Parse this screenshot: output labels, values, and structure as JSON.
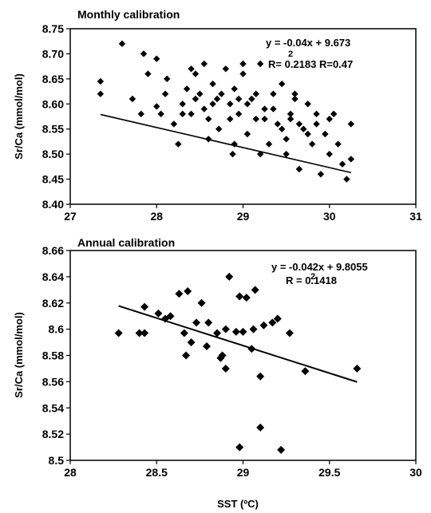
{
  "figure": {
    "shared_xlabel": "SST (ºC)"
  },
  "chart_data": [
    {
      "type": "scatter",
      "title": "Monthly calibration",
      "xlabel": "",
      "ylabel": "Sr/Ca (mmol/mol)",
      "xlim": [
        27,
        31
      ],
      "ylim": [
        8.4,
        8.75
      ],
      "xticks": [
        27,
        28,
        29,
        30,
        31
      ],
      "xtick_labels": [
        "27",
        "28",
        "29",
        "30",
        "31"
      ],
      "yticks": [
        8.4,
        8.45,
        8.5,
        8.55,
        8.6,
        8.65,
        8.7,
        8.75
      ],
      "ytick_labels": [
        "8.40",
        "8.45",
        "8.50",
        "8.55",
        "8.60",
        "8.65",
        "8.70",
        "8.75"
      ],
      "grid": false,
      "marker": "diamond",
      "color": "#000000",
      "annotation_lines": [
        "y = -0.04x + 9.673",
        "R= 0.2183 R=0.47"
      ],
      "annotation_superscript": "2",
      "trendline": {
        "slope": -0.04,
        "intercept": 9.673,
        "x_range": [
          27.35,
          30.25
        ]
      },
      "points": [
        [
          27.35,
          8.645
        ],
        [
          27.35,
          8.62
        ],
        [
          27.6,
          8.72
        ],
        [
          27.72,
          8.61
        ],
        [
          27.85,
          8.7
        ],
        [
          27.82,
          8.58
        ],
        [
          27.9,
          8.66
        ],
        [
          28.0,
          8.69
        ],
        [
          28.05,
          8.58
        ],
        [
          28.12,
          8.65
        ],
        [
          28.0,
          8.595
        ],
        [
          28.2,
          8.56
        ],
        [
          28.25,
          8.52
        ],
        [
          28.3,
          8.6
        ],
        [
          28.35,
          8.63
        ],
        [
          28.4,
          8.58
        ],
        [
          28.45,
          8.66
        ],
        [
          28.5,
          8.62
        ],
        [
          28.55,
          8.68
        ],
        [
          28.6,
          8.57
        ],
        [
          28.65,
          8.64
        ],
        [
          28.7,
          8.61
        ],
        [
          28.72,
          8.55
        ],
        [
          28.8,
          8.67
        ],
        [
          28.85,
          8.6
        ],
        [
          28.88,
          8.5
        ],
        [
          28.9,
          8.63
        ],
        [
          28.95,
          8.58
        ],
        [
          29.0,
          8.66
        ],
        [
          29.05,
          8.54
        ],
        [
          29.1,
          8.61
        ],
        [
          29.15,
          8.57
        ],
        [
          29.2,
          8.68
        ],
        [
          29.25,
          8.59
        ],
        [
          29.3,
          8.52
        ],
        [
          29.35,
          8.62
        ],
        [
          29.4,
          8.56
        ],
        [
          29.45,
          8.64
        ],
        [
          29.5,
          8.5
        ],
        [
          29.55,
          8.58
        ],
        [
          29.6,
          8.61
        ],
        [
          29.65,
          8.47
        ],
        [
          29.7,
          8.55
        ],
        [
          29.75,
          8.6
        ],
        [
          29.8,
          8.52
        ],
        [
          29.85,
          8.56
        ],
        [
          29.9,
          8.46
        ],
        [
          29.95,
          8.54
        ],
        [
          30.0,
          8.5
        ],
        [
          30.05,
          8.58
        ],
        [
          30.1,
          8.52
        ],
        [
          30.15,
          8.48
        ],
        [
          30.2,
          8.45
        ],
        [
          30.25,
          8.56
        ],
        [
          30.25,
          8.49
        ],
        [
          28.1,
          8.62
        ],
        [
          28.3,
          8.58
        ],
        [
          28.45,
          8.61
        ],
        [
          28.55,
          8.59
        ],
        [
          28.65,
          8.6
        ],
        [
          28.75,
          8.62
        ],
        [
          28.85,
          8.57
        ],
        [
          28.95,
          8.61
        ],
        [
          29.05,
          8.6
        ],
        [
          29.15,
          8.62
        ],
        [
          29.25,
          8.57
        ],
        [
          29.35,
          8.59
        ],
        [
          29.45,
          8.55
        ],
        [
          29.55,
          8.57
        ],
        [
          29.65,
          8.56
        ],
        [
          29.75,
          8.54
        ],
        [
          29.85,
          8.58
        ],
        [
          28.6,
          8.53
        ],
        [
          28.9,
          8.52
        ],
        [
          29.2,
          8.5
        ],
        [
          29.5,
          8.53
        ],
        [
          28.4,
          8.67
        ],
        [
          29.0,
          8.68
        ],
        [
          29.6,
          8.62
        ],
        [
          30.0,
          8.57
        ]
      ]
    },
    {
      "type": "scatter",
      "title": "Annual calibration",
      "xlabel": "SST (ºC)",
      "ylabel": "Sr/Ca (mmol/mol)",
      "xlim": [
        28,
        30
      ],
      "ylim": [
        8.5,
        8.66
      ],
      "xticks": [
        28,
        28.5,
        29,
        29.5,
        30
      ],
      "xtick_labels": [
        "28",
        "28.5",
        "29",
        "29.5",
        "30"
      ],
      "yticks": [
        8.5,
        8.52,
        8.54,
        8.56,
        8.58,
        8.6,
        8.62,
        8.64,
        8.66
      ],
      "ytick_labels": [
        "8.5",
        "8.52",
        "8.54",
        "8.56",
        "8.58",
        "8.6",
        "8.62",
        "8.64",
        "8.66"
      ],
      "grid": false,
      "marker": "diamond",
      "color": "#000000",
      "annotation_lines": [
        "y = -0.042x + 9.8055",
        "R = 0.1418"
      ],
      "annotation_superscript": "2",
      "trendline": {
        "slope": -0.042,
        "intercept": 9.8055,
        "x_range": [
          28.28,
          29.66
        ]
      },
      "points": [
        [
          28.28,
          8.597
        ],
        [
          28.4,
          8.597
        ],
        [
          28.43,
          8.617
        ],
        [
          28.43,
          8.597
        ],
        [
          28.51,
          8.612
        ],
        [
          28.55,
          8.608
        ],
        [
          28.58,
          8.61
        ],
        [
          28.63,
          8.627
        ],
        [
          28.66,
          8.597
        ],
        [
          28.67,
          8.58
        ],
        [
          28.68,
          8.629
        ],
        [
          28.7,
          8.59
        ],
        [
          28.73,
          8.605
        ],
        [
          28.76,
          8.62
        ],
        [
          28.79,
          8.587
        ],
        [
          28.8,
          8.605
        ],
        [
          28.85,
          8.597
        ],
        [
          28.87,
          8.578
        ],
        [
          28.88,
          8.58
        ],
        [
          28.9,
          8.6
        ],
        [
          28.9,
          8.57
        ],
        [
          28.92,
          8.64
        ],
        [
          28.96,
          8.598
        ],
        [
          28.98,
          8.625
        ],
        [
          28.98,
          8.51
        ],
        [
          29.0,
          8.598
        ],
        [
          29.02,
          8.624
        ],
        [
          29.05,
          8.585
        ],
        [
          29.06,
          8.6
        ],
        [
          29.07,
          8.63
        ],
        [
          29.1,
          8.525
        ],
        [
          29.1,
          8.564
        ],
        [
          29.12,
          8.603
        ],
        [
          29.17,
          8.605
        ],
        [
          29.2,
          8.608
        ],
        [
          29.22,
          8.508
        ],
        [
          29.27,
          8.597
        ],
        [
          29.36,
          8.568
        ],
        [
          29.66,
          8.57
        ]
      ]
    }
  ]
}
